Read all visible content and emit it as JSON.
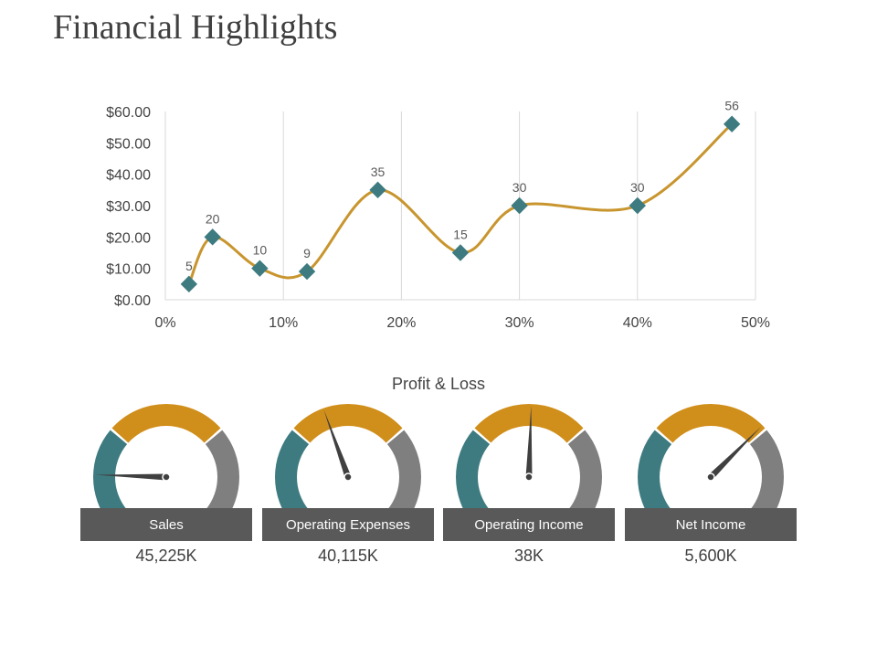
{
  "page_title": "Financial Highlights",
  "colors": {
    "line": "#C8952E",
    "marker": "#3E7B80",
    "teal": "#3E7B80",
    "gold": "#D08E1A",
    "gray": "#7F7F7F",
    "grid": "#D9D9D9"
  },
  "chart_data": {
    "type": "scatter",
    "title": "",
    "xlabel": "",
    "ylabel": "",
    "x_ticks": [
      "0%",
      "10%",
      "20%",
      "30%",
      "40%",
      "50%"
    ],
    "y_ticks": [
      "$0.00",
      "$10.00",
      "$20.00",
      "$30.00",
      "$40.00",
      "$50.00",
      "$60.00"
    ],
    "xlim": [
      0,
      50
    ],
    "ylim": [
      0,
      60
    ],
    "points": [
      {
        "x": 2,
        "y": 5,
        "label": "5"
      },
      {
        "x": 4,
        "y": 20,
        "label": "20"
      },
      {
        "x": 8,
        "y": 10,
        "label": "10"
      },
      {
        "x": 12,
        "y": 9,
        "label": "9"
      },
      {
        "x": 18,
        "y": 35,
        "label": "35"
      },
      {
        "x": 25,
        "y": 15,
        "label": "15"
      },
      {
        "x": 30,
        "y": 30,
        "label": "30"
      },
      {
        "x": 40,
        "y": 30,
        "label": "30"
      },
      {
        "x": 48,
        "y": 56,
        "label": "56"
      }
    ]
  },
  "profit_loss": {
    "title": "Profit & Loss",
    "gauges": [
      {
        "label": "Sales",
        "value": "45,225K",
        "needle_fraction": 0.01
      },
      {
        "label": "Operating Expenses",
        "value": "40,115K",
        "needle_fraction": 0.39
      },
      {
        "label": "Operating Income",
        "value": "38K",
        "needle_fraction": 0.51
      },
      {
        "label": "Net Income",
        "value": "5,600K",
        "needle_fraction": 0.75
      }
    ]
  }
}
